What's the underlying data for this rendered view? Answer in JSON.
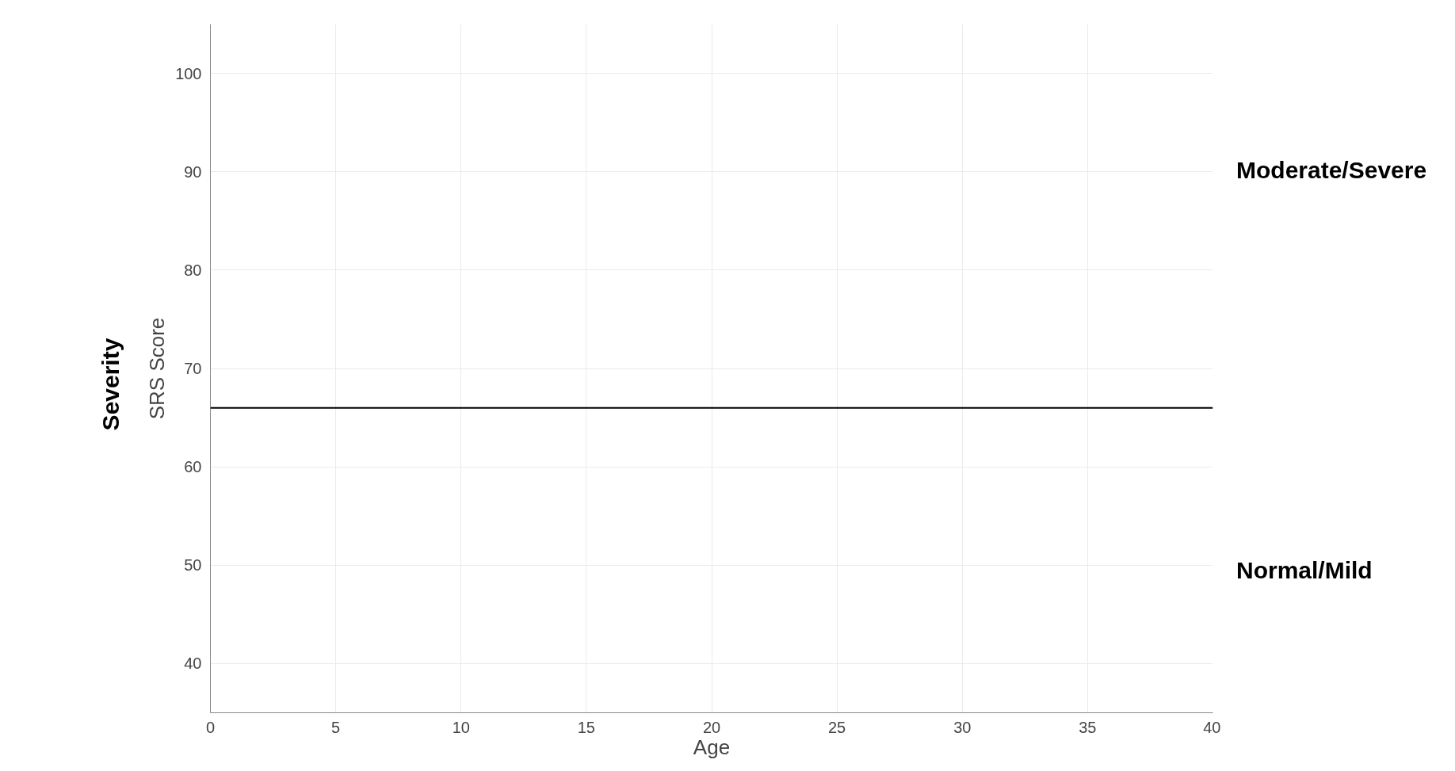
{
  "chart_data": {
    "type": "line",
    "xlabel": "Age",
    "ylabel": "SRS Score",
    "xlim": [
      0,
      40
    ],
    "xticks": [
      0,
      5,
      10,
      15,
      20,
      25,
      30,
      35,
      40
    ],
    "ylim": [
      35,
      105
    ],
    "yticks": [
      40,
      50,
      60,
      70,
      80,
      90,
      100
    ],
    "grid": true,
    "ref_lines": [
      {
        "axis": "y",
        "value": 66,
        "color": "#000000",
        "line_style": "solid"
      }
    ],
    "annotations": [
      "Severity",
      "Moderate/Severe",
      "Normal/Mild"
    ]
  }
}
